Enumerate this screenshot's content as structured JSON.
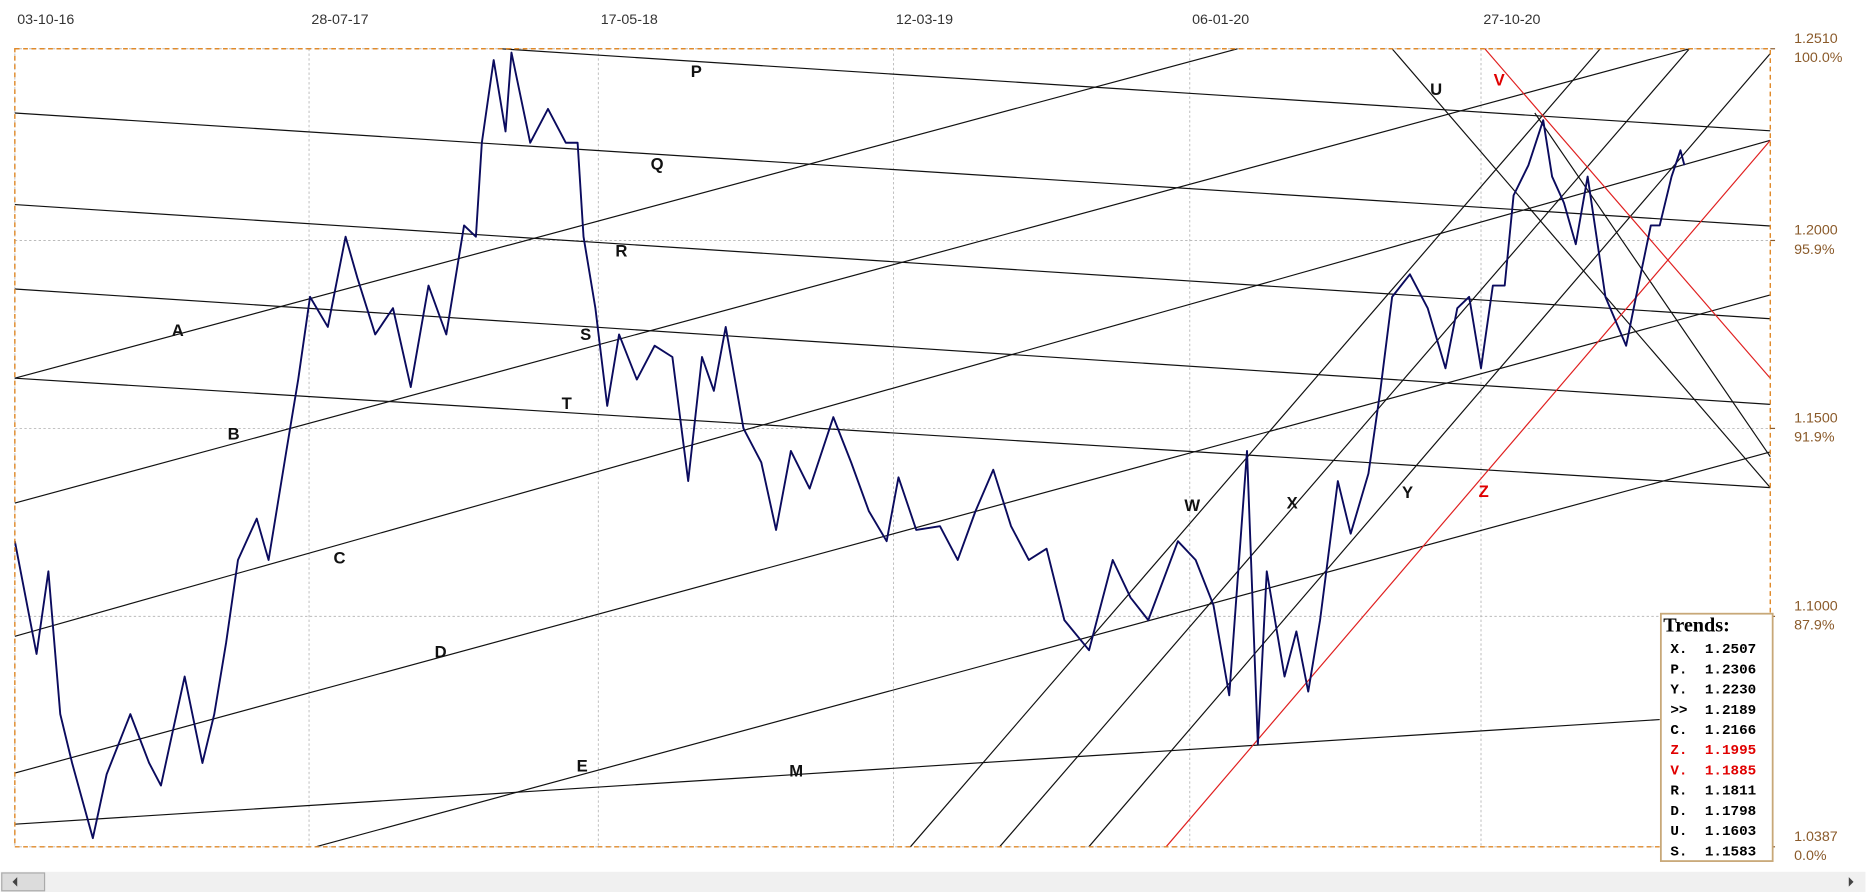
{
  "chart_data": {
    "type": "line",
    "xlim": [
      "2016-10-03",
      "2021-08-16"
    ],
    "xticks": [
      {
        "value": "2016-10-03",
        "label": "03-10-16"
      },
      {
        "value": "2017-07-28",
        "label": "28-07-17"
      },
      {
        "value": "2018-05-17",
        "label": "17-05-18"
      },
      {
        "value": "2019-03-12",
        "label": "12-03-19"
      },
      {
        "value": "2020-01-06",
        "label": "06-01-20"
      },
      {
        "value": "2020-10-27",
        "label": "27-10-20"
      }
    ],
    "ylim": [
      1.0387,
      1.251
    ],
    "yticks": [
      {
        "value": 1.251,
        "label": "1.2510"
      },
      {
        "value": 1.2,
        "label": "1.2000"
      },
      {
        "value": 1.15,
        "label": "1.1500"
      },
      {
        "value": 1.1,
        "label": "1.1000"
      },
      1.0387
    ],
    "ytick_percent_labels": [
      "100.0%",
      "95.9%",
      "91.9%",
      "87.9%",
      "0.0%"
    ],
    "grid": true,
    "series": [
      {
        "color": "#0b0b5e",
        "x": [
          "2016-10-03",
          "2016-10-25",
          "2016-11-06",
          "2016-11-18",
          "2016-11-30",
          "2016-12-21",
          "2017-01-04",
          "2017-01-28",
          "2017-02-16",
          "2017-02-28",
          "2017-03-24",
          "2017-04-11",
          "2017-04-23",
          "2017-05-05",
          "2017-05-17",
          "2017-06-05",
          "2017-06-17",
          "2017-07-05",
          "2017-07-17",
          "2017-07-29",
          "2017-08-16",
          "2017-09-03",
          "2017-09-15",
          "2017-10-03",
          "2017-10-21",
          "2017-11-08",
          "2017-11-26",
          "2017-12-14",
          "2018-01-01",
          "2018-01-13",
          "2018-01-19",
          "2018-01-31",
          "2018-02-12",
          "2018-02-18",
          "2018-03-09",
          "2018-03-27",
          "2018-04-14",
          "2018-04-26",
          "2018-05-02",
          "2018-05-14",
          "2018-05-26",
          "2018-06-07",
          "2018-06-25",
          "2018-07-13",
          "2018-07-31",
          "2018-08-16",
          "2018-08-30",
          "2018-09-11",
          "2018-09-23",
          "2018-10-11",
          "2018-10-29",
          "2018-11-13",
          "2018-11-28",
          "2018-12-17",
          "2019-01-10",
          "2019-01-28",
          "2019-02-15",
          "2019-03-05",
          "2019-03-17",
          "2019-04-04",
          "2019-04-28",
          "2019-05-16",
          "2019-06-03",
          "2019-06-21",
          "2019-07-09",
          "2019-07-27",
          "2019-08-14",
          "2019-09-01",
          "2019-09-26",
          "2019-10-20",
          "2019-11-07",
          "2019-11-25",
          "2019-12-25",
          "2020-01-12",
          "2020-01-30",
          "2020-02-15",
          "2020-03-04",
          "2020-03-15",
          "2020-03-24",
          "2020-04-11",
          "2020-04-23",
          "2020-05-05",
          "2020-05-17",
          "2020-06-04",
          "2020-06-17",
          "2020-07-05",
          "2020-07-17",
          "2020-07-29",
          "2020-08-16",
          "2020-09-03",
          "2020-09-21",
          "2020-10-03",
          "2020-10-15",
          "2020-10-27",
          "2020-11-08",
          "2020-11-20",
          "2020-11-29",
          "2020-12-14",
          "2020-12-29",
          "2021-01-07",
          "2021-01-19",
          "2021-01-31",
          "2021-02-12",
          "2021-03-02",
          "2021-03-23",
          "2021-04-02",
          "2021-04-17",
          "2021-04-26",
          "2021-05-08",
          "2021-05-17",
          "2021-05-21"
        ],
        "values": [
          1.12,
          1.09,
          1.112,
          1.074,
          1.061,
          1.041,
          1.058,
          1.074,
          1.061,
          1.055,
          1.084,
          1.061,
          1.074,
          1.093,
          1.115,
          1.126,
          1.115,
          1.144,
          1.163,
          1.185,
          1.177,
          1.201,
          1.19,
          1.175,
          1.182,
          1.161,
          1.188,
          1.175,
          1.204,
          1.201,
          1.226,
          1.248,
          1.229,
          1.25,
          1.226,
          1.235,
          1.226,
          1.226,
          1.201,
          1.182,
          1.156,
          1.175,
          1.163,
          1.172,
          1.169,
          1.136,
          1.169,
          1.16,
          1.177,
          1.15,
          1.141,
          1.123,
          1.144,
          1.134,
          1.153,
          1.141,
          1.128,
          1.12,
          1.137,
          1.123,
          1.124,
          1.115,
          1.128,
          1.139,
          1.124,
          1.115,
          1.118,
          1.099,
          1.091,
          1.115,
          1.105,
          1.099,
          1.12,
          1.115,
          1.103,
          1.079,
          1.144,
          1.066,
          1.112,
          1.084,
          1.096,
          1.08,
          1.099,
          1.136,
          1.122,
          1.138,
          1.16,
          1.185,
          1.191,
          1.182,
          1.166,
          1.182,
          1.185,
          1.166,
          1.188,
          1.188,
          1.212,
          1.22,
          1.232,
          1.217,
          1.21,
          1.199,
          1.217,
          1.185,
          1.172,
          1.185,
          1.204,
          1.204,
          1.217,
          1.224,
          1.22
        ]
      }
    ],
    "annotations": [
      {
        "text": "P"
      },
      {
        "text": "Q"
      },
      {
        "text": "R"
      },
      {
        "text": "S"
      },
      {
        "text": "T"
      },
      {
        "text": "A"
      },
      {
        "text": "B"
      },
      {
        "text": "C"
      },
      {
        "text": "D"
      },
      {
        "text": "E"
      },
      {
        "text": "M"
      },
      {
        "text": "U"
      },
      {
        "text": "V"
      },
      {
        "text": "W"
      },
      {
        "text": "X"
      },
      {
        "text": "Y"
      },
      {
        "text": "Z"
      }
    ],
    "trends": {
      "title": "Trends:",
      "items": [
        {
          "label": "X.",
          "value": "1.2507"
        },
        {
          "label": "P.",
          "value": "1.2306"
        },
        {
          "label": "Y.",
          "value": "1.2230"
        },
        {
          "label": ">>",
          "value": "1.2189"
        },
        {
          "label": "C.",
          "value": "1.2166"
        },
        {
          "label": "Z.",
          "value": "1.1995"
        },
        {
          "label": "V.",
          "value": "1.1885"
        },
        {
          "label": "R.",
          "value": "1.1811"
        },
        {
          "label": "D.",
          "value": "1.1798"
        },
        {
          "label": "U.",
          "value": "1.1603"
        },
        {
          "label": "S.",
          "value": "1.1583"
        }
      ]
    }
  }
}
